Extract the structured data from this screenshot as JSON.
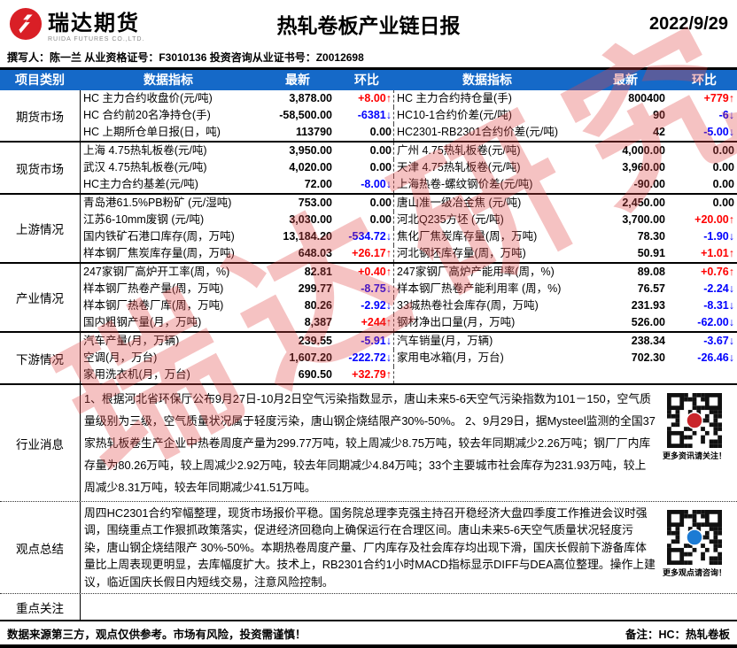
{
  "colors": {
    "header_bg": "#1569c8",
    "up": "#fe0000",
    "down": "#0000fe",
    "brand_red": "#d91f26"
  },
  "header": {
    "logo_cn": "瑞达期货",
    "logo_en": "RUIDA FUTURES CO.,LTD.",
    "title": "热轧卷板产业链日报",
    "date": "2022/9/29"
  },
  "byline": "撰写人：陈一兰  从业资格证号：F3010136   投资咨询从业证书号：Z0012698",
  "table": {
    "columns": [
      "项目类别",
      "数据指标",
      "最新",
      "环比",
      "数据指标",
      "最新",
      "环比"
    ],
    "sections": [
      {
        "category": "期货市场",
        "rows": [
          {
            "l_label": "HC 主力合约收盘价(元/吨)",
            "l_value": "3,878.00",
            "l_change": "+8.00↑",
            "l_dir": "up",
            "r_label": "HC 主力合约持仓量(手)",
            "r_value": "800400",
            "r_change": "+779↑",
            "r_dir": "up"
          },
          {
            "l_label": "HC 合约前20名净持仓(手)",
            "l_value": "-58,500.00",
            "l_change": "-6381↓",
            "l_dir": "down",
            "r_label": "HC10-1合约价差(元/吨)",
            "r_value": "90",
            "r_change": "-6↓",
            "r_dir": "down"
          },
          {
            "l_label": "HC 上期所仓单日报(日，吨)",
            "l_value": "113790",
            "l_change": "0.00",
            "l_dir": "flat",
            "r_label": "HC2301-RB2301合约价差(元/吨)",
            "r_value": "42",
            "r_change": "-5.00↓",
            "r_dir": "down"
          }
        ]
      },
      {
        "category": "现货市场",
        "rows": [
          {
            "l_label": "上海 4.75热轧板卷(元/吨)",
            "l_value": "3,950.00",
            "l_change": "0.00",
            "l_dir": "flat",
            "r_label": "广州 4.75热轧板卷(元/吨)",
            "r_value": "4,000.00",
            "r_change": "0.00",
            "r_dir": "flat"
          },
          {
            "l_label": "武汉 4.75热轧板卷(元/吨)",
            "l_value": "4,020.00",
            "l_change": "0.00",
            "l_dir": "flat",
            "r_label": "天津 4.75热轧板卷(元/吨)",
            "r_value": "3,960.00",
            "r_change": "0.00",
            "r_dir": "flat"
          },
          {
            "l_label": "HC主力合约基差(元/吨)",
            "l_value": "72.00",
            "l_change": "-8.00↓",
            "l_dir": "down",
            "r_label": "上海热卷-螺纹钢价差(元/吨)",
            "r_value": "-90.00",
            "r_change": "0.00",
            "r_dir": "flat"
          }
        ]
      },
      {
        "category": "上游情况",
        "rows": [
          {
            "l_label": "青岛港61.5%PB粉矿 (元/湿吨)",
            "l_value": "753.00",
            "l_change": "0.00",
            "l_dir": "flat",
            "r_label": "唐山准一级冶金焦 (元/吨)",
            "r_value": "2,450.00",
            "r_change": "0.00",
            "r_dir": "flat"
          },
          {
            "l_label": "江苏6-10mm废钢 (元/吨)",
            "l_value": "3,030.00",
            "l_change": "0.00",
            "l_dir": "flat",
            "r_label": "河北Q235方坯 (元/吨)",
            "r_value": "3,700.00",
            "r_change": "+20.00↑",
            "r_dir": "up"
          },
          {
            "l_label": "国内铁矿石港口库存(周，万吨)",
            "l_value": "13,184.20",
            "l_change": "-534.72↓",
            "l_dir": "down",
            "r_label": "焦化厂焦炭库存量(周，万吨)",
            "r_value": "78.30",
            "r_change": "-1.90↓",
            "r_dir": "down"
          },
          {
            "l_label": "样本钢厂焦炭库存量(周，万吨)",
            "l_value": "648.03",
            "l_change": "+26.17↑",
            "l_dir": "up",
            "r_label": "河北钢坯库存量(周，万吨)",
            "r_value": "50.91",
            "r_change": "+1.01↑",
            "r_dir": "up"
          }
        ]
      },
      {
        "category": "产业情况",
        "rows": [
          {
            "l_label": "247家钢厂高炉开工率(周，%)",
            "l_value": "82.81",
            "l_change": "+0.40↑",
            "l_dir": "up",
            "r_label": "247家钢厂高炉产能用率(周，%)",
            "r_value": "89.08",
            "r_change": "+0.76↑",
            "r_dir": "up"
          },
          {
            "l_label": "样本钢厂热卷产量(周，万吨)",
            "l_value": "299.77",
            "l_change": "-8.75↓",
            "l_dir": "down",
            "r_label": "样本钢厂热卷产能利用率 (周，%)",
            "r_value": "76.57",
            "r_change": "-2.24↓",
            "r_dir": "down"
          },
          {
            "l_label": "样本钢厂热卷厂库(周，万吨)",
            "l_value": "80.26",
            "l_change": "-2.92↓",
            "l_dir": "down",
            "r_label": "33城热卷社会库存(周，万吨)",
            "r_value": "231.93",
            "r_change": "-8.31↓",
            "r_dir": "down"
          },
          {
            "l_label": "国内粗钢产量(月，万吨)",
            "l_value": "8,387",
            "l_change": "+244↑",
            "l_dir": "up",
            "r_label": "钢材净出口量(月，万吨)",
            "r_value": "526.00",
            "r_change": "-62.00↓",
            "r_dir": "down"
          }
        ]
      },
      {
        "category": "下游情况",
        "rows": [
          {
            "l_label": "汽车产量(月，万辆)",
            "l_value": "239.55",
            "l_change": "-5.91↓",
            "l_dir": "down",
            "r_label": "汽车销量(月，万辆)",
            "r_value": "238.34",
            "r_change": "-3.67↓",
            "r_dir": "down"
          },
          {
            "l_label": "空调(月，万台)",
            "l_value": "1,607.20",
            "l_change": "-222.72↓",
            "l_dir": "down",
            "r_label": "家用电冰箱(月，万台)",
            "r_value": "702.30",
            "r_change": "-26.46↓",
            "r_dir": "down"
          },
          {
            "l_label": "家用洗衣机(月，万台)",
            "l_value": "690.50",
            "l_change": "+32.79↑",
            "l_dir": "up",
            "r_label": "",
            "r_value": "",
            "r_change": "",
            "r_dir": "flat"
          }
        ]
      }
    ]
  },
  "news": {
    "category": "行业消息",
    "text": "1、根据河北省环保厅公布9月27日-10月2日空气污染指数显示，唐山未来5-6天空气污染指数为101－150，空气质量级别为三级，空气质量状况属于轻度污染，唐山钢企烧结限产30%-50%。 2、9月29日，据Mysteel监测的全国37家热轧板卷生产企业中热卷周度产量为299.77万吨，较上周减少8.75万吨，较去年同期减少2.26万吨；钢厂厂内库存量为80.26万吨，较上周减少2.92万吨，较去年同期减少4.84万吨；33个主要城市社会库存为231.93万吨，较上周减少8.31万吨，较去年同期减少41.51万吨。",
    "qr_caption": "更多资讯请关注！"
  },
  "summary": {
    "category": "观点总结",
    "text": "周四HC2301合约窄幅整理，现货市场报价平稳。国务院总理李克强主持召开稳经济大盘四季度工作推进会议时强调，围绕重点工作狠抓政策落实，促进经济回稳向上确保运行在合理区间。唐山未来5-6天空气质量状况轻度污染，唐山钢企烧结限产 30%-50%。本期热卷周度产量、厂内库存及社会库存均出现下滑，国庆长假前下游备库体量比上周表现更明显，去库幅度扩大。技术上，RB2301合约1小时MACD指标显示DIFF与DEA高位整理。操作上建议，临近国庆长假日内短线交易，注意风险控制。",
    "qr_caption": "更多观点请咨询！"
  },
  "focus": {
    "category": "重点关注",
    "text": ""
  },
  "footer": {
    "disclaimer": "数据来源第三方，观点仅供参考。市场有风险，投资需谨慎！",
    "note": "备注：HC：热轧卷板"
  },
  "watermark": "瑞达研究"
}
